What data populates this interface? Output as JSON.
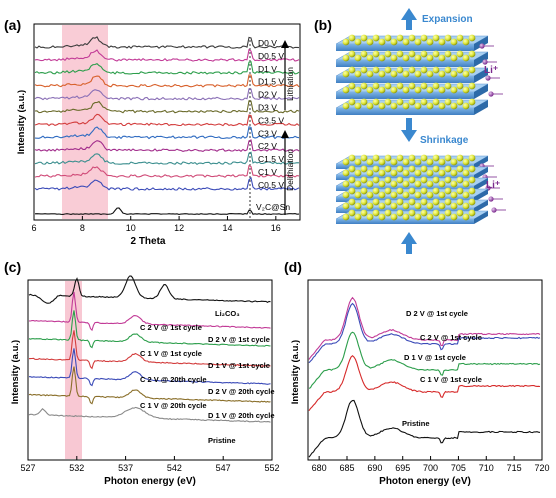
{
  "panels": {
    "a": {
      "letter": "(a)",
      "xlabel": "2 Theta",
      "ylabel": "Intensity (a.u.)",
      "xticks": [
        "6",
        "8",
        "10",
        "12",
        "14",
        "16"
      ],
      "labels_lith": [
        "D0 V",
        "D0.5 V",
        "D1 V",
        "D1.5 V",
        "D2 V",
        "D3 V"
      ],
      "labels_delith": [
        "C3.5 V",
        "C3 V",
        "C2 V",
        "C1.5 V",
        "C1 V",
        "C0.5 V"
      ],
      "bottom_label": "V₂C@Sn",
      "lithiation": "Lithiation",
      "delithiation": "Delithiation",
      "colors": [
        "#3a3a3a",
        "#c23b97",
        "#2c9e4b",
        "#d8612c",
        "#8a6fb6",
        "#6a6a2a",
        "#d33d3d",
        "#2f6bc1",
        "#a22d8c",
        "#3c8f8f",
        "#d04b78",
        "#3b4bb8",
        "#d62a2a"
      ]
    },
    "b": {
      "letter": "(b)",
      "expansion": "Expansion",
      "shrinkage": "Shrinkage",
      "li_label": "Li⁺"
    },
    "c": {
      "letter": "(c)",
      "xlabel": "Photon energy (eV)",
      "ylabel": "Intensity (a.u.)",
      "xticks": [
        "527",
        "532",
        "537",
        "542",
        "547",
        "552"
      ],
      "labels_left": [
        "C 2 V @ 1st cycle",
        "C 1 V @ 1st cycle",
        "C 2 V @ 20th cycle",
        "C 1 V @ 20th cycle"
      ],
      "labels_right": [
        "Li₂CO₃",
        "D 2 V @ 1st cycle",
        "D 1 V @ 1st cycle",
        "D 2 V @ 20th cycle",
        "D 1 V @ 20th cycle",
        "Pristine"
      ],
      "colors": [
        "#111111",
        "#c23b97",
        "#2c9e4b",
        "#d33d3d",
        "#3b4bb8",
        "#8a6f2a",
        "#8a8a8a"
      ]
    },
    "d": {
      "letter": "(d)",
      "xlabel": "Photon energy (eV)",
      "ylabel": "Intensity (a.u.)",
      "xticks": [
        "680",
        "685",
        "690",
        "695",
        "700",
        "705",
        "710",
        "715",
        "720"
      ],
      "labels": [
        "D 2 V @ 1st cycle",
        "C 2 V @ 1st cycle",
        "D 1 V @ 1st cycle",
        "C 1 V @ 1st cycle",
        "Pristine"
      ],
      "colors": [
        "#c23b97",
        "#3b4bb8",
        "#2c9e4b",
        "#d62a2a",
        "#111111"
      ]
    }
  }
}
